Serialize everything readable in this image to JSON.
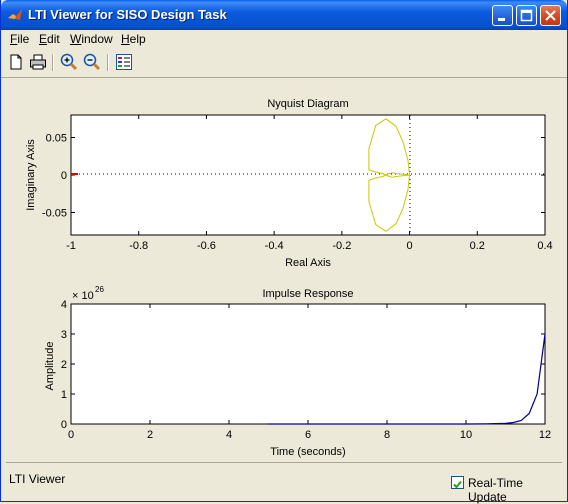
{
  "window": {
    "title": "LTI Viewer for SISO Design Task"
  },
  "menu": {
    "items": [
      {
        "first": "F",
        "rest": "ile"
      },
      {
        "first": "E",
        "rest": "dit"
      },
      {
        "first": "W",
        "rest": "indow"
      },
      {
        "first": "H",
        "rest": "elp"
      }
    ]
  },
  "toolbar": {
    "icons": [
      "new-document-icon",
      "print-icon",
      "zoom-in-icon",
      "zoom-out-icon",
      "legend-icon"
    ]
  },
  "plots": {
    "nyquist": {
      "title": "Nyquist Diagram",
      "xlabel": "Real Axis",
      "ylabel": "Imaginary Axis",
      "xticks": [
        "-1",
        "-0.8",
        "-0.6",
        "-0.4",
        "-0.2",
        "0",
        "0.2",
        "0.4"
      ],
      "yticks": [
        "0.05",
        "0",
        "-0.05"
      ]
    },
    "impulse": {
      "title": "Impulse Response",
      "xlabel": "Time (seconds)",
      "ylabel": "Amplitude",
      "exponent_base": "× 10",
      "exponent_power": "26",
      "xticks": [
        "0",
        "2",
        "4",
        "6",
        "8",
        "10",
        "12"
      ],
      "yticks": [
        "4",
        "3",
        "2",
        "1",
        "0"
      ]
    }
  },
  "chart_data": [
    {
      "type": "line",
      "title": "Nyquist Diagram",
      "xlabel": "Real Axis",
      "ylabel": "Imaginary Axis",
      "xlim": [
        -1,
        0.4
      ],
      "ylim": [
        -0.08,
        0.08
      ],
      "critical_point": [
        -1,
        0
      ],
      "color": "#C8C800",
      "series": [
        {
          "x": [
            0,
            -0.005,
            -0.02,
            -0.04,
            -0.07,
            -0.1,
            -0.12,
            -0.12,
            -0.1,
            -0.08,
            -0.07,
            -0.06,
            -0.05,
            -0.04,
            -0.02,
            0
          ],
          "y": [
            0,
            0.02,
            0.045,
            0.065,
            0.075,
            0.066,
            0.035,
            0.007,
            0.004,
            0.002,
            0.0,
            -0.002,
            -0.003,
            -0.002,
            -0.001,
            0
          ]
        },
        {
          "x": [
            0,
            -0.005,
            -0.02,
            -0.04,
            -0.07,
            -0.1,
            -0.12,
            -0.12,
            -0.1,
            -0.08,
            -0.07,
            -0.06,
            -0.05,
            -0.04,
            -0.02,
            0
          ],
          "y": [
            0,
            -0.02,
            -0.045,
            -0.065,
            -0.075,
            -0.066,
            -0.035,
            -0.007,
            -0.004,
            -0.002,
            0.0,
            0.002,
            0.003,
            0.002,
            0.001,
            0
          ]
        }
      ]
    },
    {
      "type": "line",
      "title": "Impulse Response",
      "xlabel": "Time (seconds)",
      "ylabel": "Amplitude",
      "xlim": [
        0,
        12
      ],
      "ylim": [
        0,
        4
      ],
      "y_scale_exponent": 26,
      "color": "#00008B",
      "series": [
        {
          "x": [
            5,
            6,
            7,
            8,
            9,
            10,
            10.5,
            11,
            11.2,
            11.4,
            11.6,
            11.8,
            12
          ],
          "y": [
            0,
            0,
            0,
            0,
            0,
            0.001,
            0.003,
            0.02,
            0.05,
            0.12,
            0.35,
            1.0,
            3.0
          ]
        }
      ]
    }
  ],
  "status": {
    "text": "LTI Viewer",
    "realtime_label": "Real-Time Update",
    "realtime_checked": true
  }
}
